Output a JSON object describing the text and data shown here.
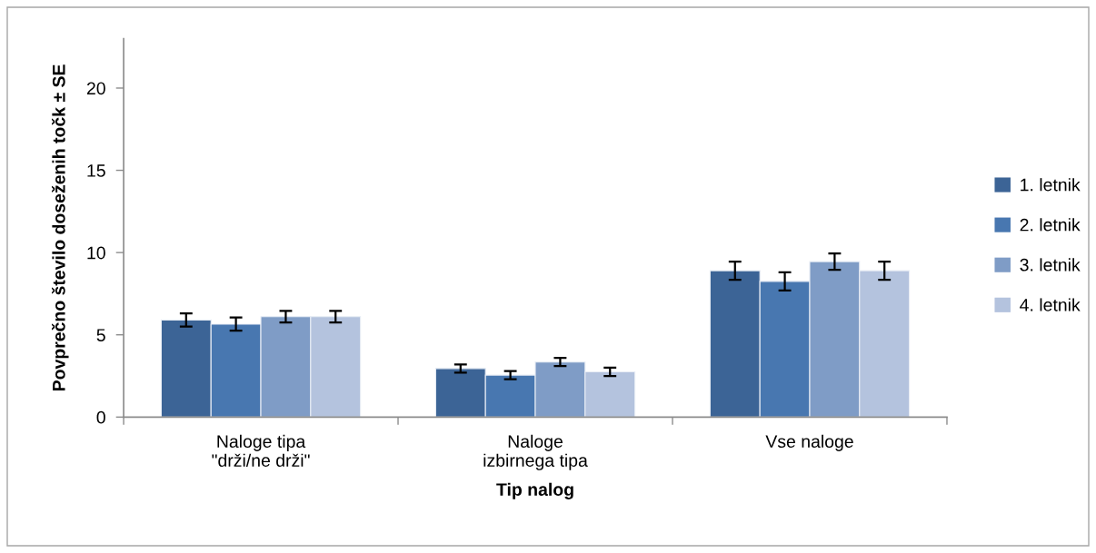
{
  "chart_data": {
    "type": "bar",
    "xlabel": "Tip nalog",
    "ylabel": "Povprečno število doseženih točk ± SE",
    "categories": [
      "Naloge tipa\n\"drži/ne drži\"",
      "Naloge\nizbirnega tipa",
      "Vse naloge"
    ],
    "series": [
      {
        "name": "1. letnik",
        "color": "#3c6496",
        "values": [
          5.9,
          2.95,
          8.9
        ],
        "errors": [
          0.4,
          0.25,
          0.55
        ]
      },
      {
        "name": "2. letnik",
        "color": "#4877b0",
        "values": [
          5.65,
          2.55,
          8.25
        ],
        "errors": [
          0.4,
          0.25,
          0.55
        ]
      },
      {
        "name": "3. letnik",
        "color": "#7f9cc6",
        "values": [
          6.1,
          3.35,
          9.45
        ],
        "errors": [
          0.35,
          0.25,
          0.5
        ]
      },
      {
        "name": "4. letnik",
        "color": "#b4c3de",
        "values": [
          6.1,
          2.75,
          8.9
        ],
        "errors": [
          0.35,
          0.25,
          0.55
        ]
      }
    ],
    "ylim": [
      0,
      23
    ],
    "yticks": [
      0,
      5,
      10,
      15,
      20
    ],
    "legend": "right"
  }
}
